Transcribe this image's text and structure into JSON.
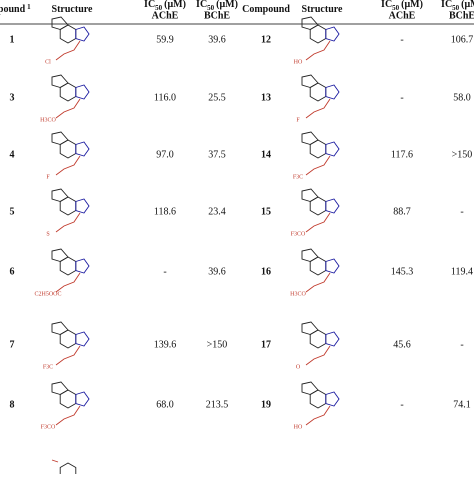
{
  "table": {
    "header": [
      {
        "text": "Compound",
        "sup": "1"
      },
      {
        "text": "Structure"
      },
      {
        "ic": "IC",
        "sub": "50",
        "unit": "(μM)",
        "enzyme": "AChE"
      },
      {
        "ic": "IC",
        "sub": "50",
        "unit": "(μM)",
        "enzyme": "BChE"
      },
      {
        "text": "Compound"
      },
      {
        "text": "Structure"
      },
      {
        "ic": "IC",
        "sub": "50",
        "unit": "(μM)",
        "enzyme": "AChE"
      },
      {
        "ic": "IC",
        "sub": "50",
        "unit": "(μM)",
        "enzyme": "BChE"
      }
    ],
    "rows": [
      {
        "left": {
          "compound": "1",
          "substituent": "Cl",
          "ache": "59.9",
          "bche": "39.6"
        },
        "right": {
          "compound": "12",
          "substituent": "HO",
          "ache": "-",
          "bche": "106.7"
        }
      },
      {
        "left": {
          "compound": "3",
          "substituent": "H3CO",
          "ache": "116.0",
          "bche": "25.5"
        },
        "right": {
          "compound": "13",
          "substituent": "F",
          "ache": "-",
          "bche": "58.0"
        }
      },
      {
        "left": {
          "compound": "4",
          "substituent": "F",
          "ache": "97.0",
          "bche": "37.5"
        },
        "right": {
          "compound": "14",
          "substituent": "F3C",
          "ache": "117.6",
          "bche": ">150"
        }
      },
      {
        "left": {
          "compound": "5",
          "substituent": "S",
          "ache": "118.6",
          "bche": "23.4"
        },
        "right": {
          "compound": "15",
          "substituent": "F3CO",
          "ache": "88.7",
          "bche": "-"
        }
      },
      {
        "left": {
          "compound": "6",
          "substituent": "C2H5OOC",
          "ache": "-",
          "bche": "39.6"
        },
        "right": {
          "compound": "16",
          "substituent": "H3CO",
          "ache": "145.3",
          "bche": "119.4"
        }
      },
      {
        "left": {
          "compound": "7",
          "substituent": "F3C",
          "ache": "139.6",
          "bche": ">150"
        },
        "right": {
          "compound": "17",
          "substituent": "O",
          "ache": "45.6",
          "bche": "-"
        }
      },
      {
        "left": {
          "compound": "8",
          "substituent": "F3CO",
          "ache": "68.0",
          "bche": "213.5"
        },
        "right": {
          "compound": "19",
          "substituent": "HO",
          "ache": "-",
          "bche": "74.1"
        }
      }
    ]
  }
}
